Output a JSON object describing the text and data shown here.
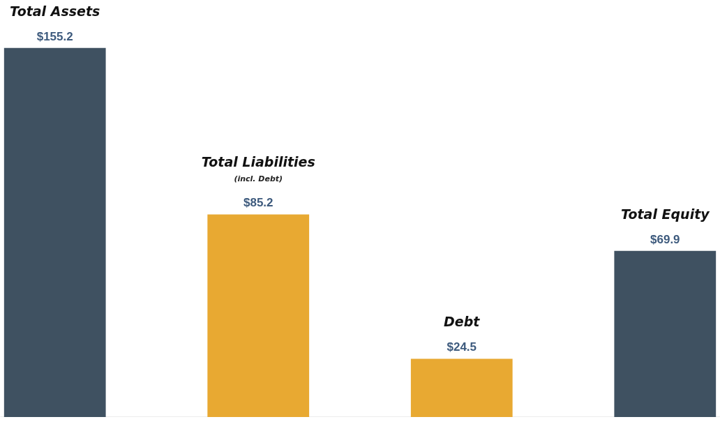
{
  "chart_data": {
    "type": "bar",
    "categories": [
      "Total Assets",
      "Total Liabilities",
      "Debt",
      "Total Equity"
    ],
    "values": [
      155.2,
      85.2,
      24.5,
      69.9
    ],
    "colors": [
      "#3f5161",
      "#e8a932",
      "#e8a932",
      "#3f5161"
    ],
    "value_labels": [
      "$155.2",
      "$85.2",
      "$24.5",
      "$69.9"
    ],
    "annotations": [
      "(incl. Debt)"
    ],
    "tick_labels": false,
    "grid": false
  }
}
